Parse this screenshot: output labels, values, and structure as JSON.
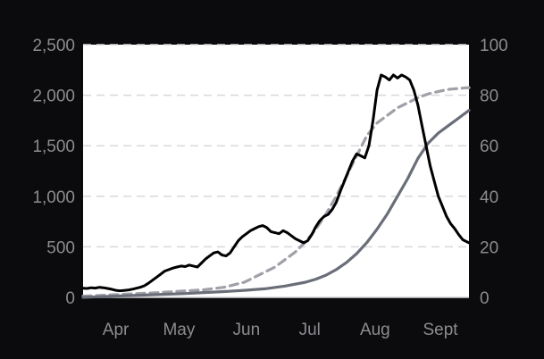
{
  "chart_data": {
    "type": "line",
    "title": "",
    "xlabel": "",
    "ylabel": "",
    "y2label": "",
    "x_unit": "day_of_year",
    "xlim": [
      81,
      270
    ],
    "ylim": [
      0,
      2500
    ],
    "y2lim": [
      0,
      100
    ],
    "grid": true,
    "legend": "none",
    "background": "#ffffff",
    "page_background": "#0b0b0d",
    "x_ticks": [
      {
        "label": "Apr",
        "x": 97
      },
      {
        "label": "May",
        "x": 128
      },
      {
        "label": "Jun",
        "x": 161
      },
      {
        "label": "Jul",
        "x": 192
      },
      {
        "label": "Aug",
        "x": 224
      },
      {
        "label": "Sept",
        "x": 256
      }
    ],
    "y_ticks": [
      {
        "label": "0",
        "value": 0
      },
      {
        "label": "500",
        "value": 500
      },
      {
        "label": "1,000",
        "value": 1000
      },
      {
        "label": "1,500",
        "value": 1500
      },
      {
        "label": "2,000",
        "value": 2000
      },
      {
        "label": "2,500",
        "value": 2500
      }
    ],
    "y2_ticks": [
      {
        "label": "0",
        "value": 0
      },
      {
        "label": "20",
        "value": 20
      },
      {
        "label": "40",
        "value": 40
      },
      {
        "label": "60",
        "value": 60
      },
      {
        "label": "80",
        "value": 80
      },
      {
        "label": "100",
        "value": 100
      }
    ],
    "series": [
      {
        "axis": "left",
        "color": "#000000",
        "style": "solid",
        "x": [
          81,
          83,
          85,
          87,
          89,
          91,
          93,
          95,
          97,
          99,
          101,
          103,
          105,
          107,
          109,
          111,
          113,
          115,
          117,
          119,
          121,
          123,
          125,
          127,
          129,
          131,
          133,
          135,
          137,
          139,
          141,
          143,
          145,
          147,
          149,
          151,
          153,
          155,
          157,
          159,
          161,
          163,
          165,
          167,
          169,
          171,
          173,
          175,
          177,
          179,
          181,
          183,
          185,
          187,
          189,
          191,
          193,
          195,
          197,
          199,
          201,
          203,
          205,
          207,
          209,
          211,
          213,
          215,
          217,
          219,
          221,
          223,
          225,
          227,
          229,
          231,
          233,
          235,
          237,
          239,
          241,
          243,
          245,
          247,
          249,
          251,
          253,
          255,
          257,
          259,
          261,
          263,
          265,
          267,
          270
        ],
        "y": [
          90,
          88,
          95,
          92,
          100,
          95,
          88,
          80,
          70,
          65,
          68,
          72,
          80,
          90,
          100,
          115,
          140,
          170,
          200,
          230,
          260,
          275,
          290,
          300,
          310,
          305,
          320,
          310,
          300,
          340,
          380,
          410,
          440,
          450,
          420,
          410,
          440,
          500,
          560,
          600,
          630,
          660,
          680,
          700,
          710,
          690,
          650,
          640,
          630,
          660,
          640,
          610,
          580,
          560,
          540,
          560,
          620,
          700,
          760,
          800,
          820,
          870,
          940,
          1050,
          1150,
          1250,
          1350,
          1420,
          1400,
          1380,
          1500,
          1750,
          2050,
          2200,
          2180,
          2150,
          2200,
          2170,
          2200,
          2180,
          2150,
          2050,
          1900,
          1700,
          1500,
          1300,
          1150,
          1000,
          900,
          800,
          730,
          680,
          620,
          570,
          540
        ]
      },
      {
        "axis": "right",
        "color": "#a0a0a8",
        "style": "dashed",
        "x": [
          81,
          90,
          100,
          110,
          120,
          130,
          140,
          150,
          160,
          165,
          170,
          175,
          180,
          185,
          190,
          195,
          200,
          205,
          210,
          215,
          220,
          225,
          230,
          235,
          240,
          245,
          250,
          255,
          260,
          265,
          270
        ],
        "y": [
          0.5,
          0.8,
          1.2,
          1.6,
          2,
          2.5,
          3,
          4,
          6,
          8,
          10,
          12,
          15,
          18,
          22,
          27,
          33,
          40,
          48,
          56,
          64,
          69,
          72,
          75,
          77,
          79,
          80.5,
          81.5,
          82.3,
          82.7,
          83
        ]
      },
      {
        "axis": "right",
        "color": "#6a6e78",
        "style": "solid",
        "x": [
          81,
          90,
          100,
          110,
          120,
          130,
          140,
          150,
          160,
          170,
          180,
          190,
          195,
          200,
          205,
          210,
          215,
          220,
          225,
          230,
          235,
          240,
          245,
          250,
          255,
          260,
          265,
          270
        ],
        "y": [
          0,
          0.3,
          0.6,
          0.9,
          1.2,
          1.5,
          1.9,
          2.3,
          2.8,
          3.4,
          4.5,
          6,
          7.2,
          8.8,
          11,
          13.8,
          17.3,
          21.7,
          27,
          33,
          40,
          47,
          55,
          61,
          65,
          68,
          71,
          74
        ]
      }
    ]
  }
}
